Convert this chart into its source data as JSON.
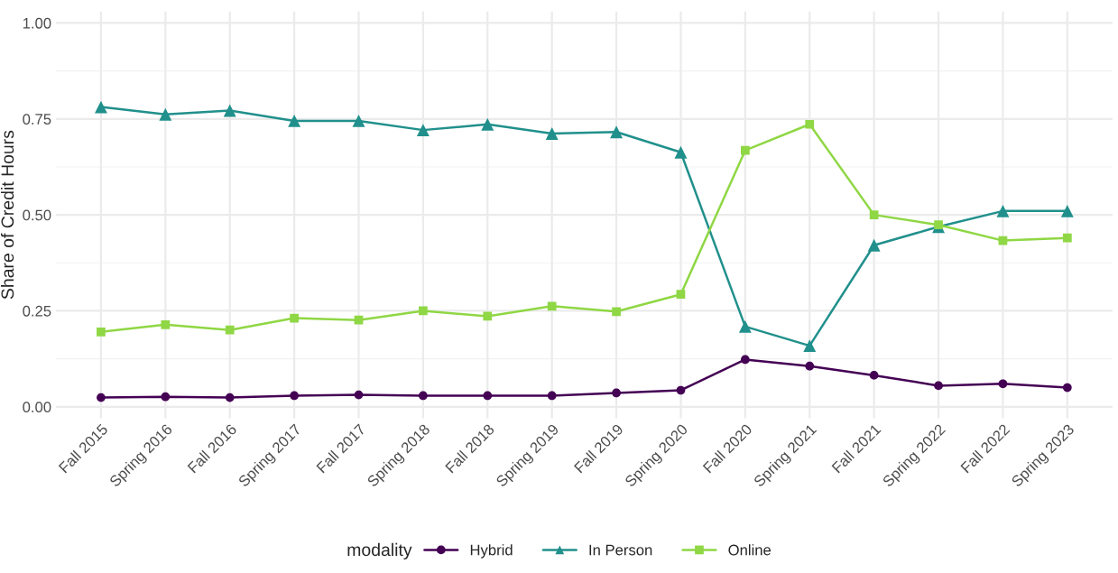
{
  "chart_data": {
    "type": "line",
    "ylabel": "Share of Credit Hours",
    "legend_title": "modality",
    "categories": [
      "Fall 2015",
      "Spring 2016",
      "Fall 2016",
      "Spring 2017",
      "Fall 2017",
      "Spring 2018",
      "Fall 2018",
      "Spring 2019",
      "Fall 2019",
      "Spring 2020",
      "Fall 2020",
      "Spring 2021",
      "Fall 2021",
      "Spring 2022",
      "Fall 2022",
      "Spring 2023"
    ],
    "series": [
      {
        "name": "Hybrid",
        "color": "#440154",
        "marker": "circle",
        "values": [
          0.024,
          0.026,
          0.024,
          0.029,
          0.031,
          0.029,
          0.029,
          0.029,
          0.036,
          0.043,
          0.123,
          0.106,
          0.082,
          0.055,
          0.06,
          0.05
        ]
      },
      {
        "name": "In Person",
        "color": "#21908c",
        "marker": "triangle",
        "values": [
          0.781,
          0.762,
          0.772,
          0.745,
          0.745,
          0.721,
          0.736,
          0.712,
          0.716,
          0.663,
          0.209,
          0.159,
          0.421,
          0.469,
          0.51,
          0.51
        ]
      },
      {
        "name": "Online",
        "color": "#8fd744",
        "marker": "square",
        "values": [
          0.195,
          0.214,
          0.2,
          0.231,
          0.226,
          0.25,
          0.236,
          0.262,
          0.248,
          0.293,
          0.668,
          0.736,
          0.5,
          0.474,
          0.433,
          0.44
        ]
      }
    ],
    "ylim": [
      -0.03,
      1.03
    ],
    "yticks": [
      {
        "value": 0,
        "label": "0.00"
      },
      {
        "value": 0.25,
        "label": "0.25"
      },
      {
        "value": 0.5,
        "label": "0.50"
      },
      {
        "value": 0.75,
        "label": "0.75"
      },
      {
        "value": 1,
        "label": "1.00"
      }
    ],
    "grid": true,
    "legend": "bottom",
    "line_style": "solid"
  }
}
